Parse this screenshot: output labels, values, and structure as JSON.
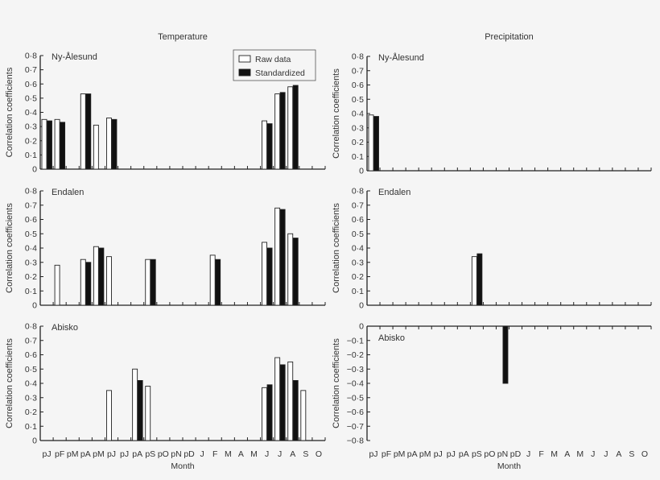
{
  "chart_data": [
    {
      "type": "bar",
      "column_title": "Temperature",
      "site": "Ny-Ålesund",
      "ylabel": "Correlation coefficients",
      "xlabel": "",
      "ylim": [
        0,
        0.8
      ],
      "yticks": [
        "0",
        "0·1",
        "0·2",
        "0·3",
        "0·4",
        "0·5",
        "0·6",
        "0·7",
        "0·8"
      ],
      "categories": [
        "pJ",
        "pF",
        "pM",
        "pA",
        "pM",
        "pJ",
        "pJ",
        "pA",
        "pS",
        "pO",
        "pN",
        "pD",
        "J",
        "F",
        "M",
        "A",
        "M",
        "J",
        "J",
        "A",
        "S",
        "O"
      ],
      "show_xticklabels": false,
      "legend": true,
      "series": [
        {
          "name": "Raw data",
          "color": "#ffffff",
          "values": [
            0.35,
            0.35,
            null,
            0.53,
            0.31,
            0.36,
            null,
            null,
            null,
            null,
            null,
            null,
            null,
            null,
            null,
            null,
            null,
            0.34,
            0.53,
            0.58,
            null,
            null
          ]
        },
        {
          "name": "Standardized",
          "color": "#111111",
          "values": [
            0.34,
            0.33,
            null,
            0.53,
            null,
            0.35,
            null,
            null,
            null,
            null,
            null,
            null,
            null,
            null,
            null,
            null,
            null,
            0.32,
            0.54,
            0.59,
            null,
            null
          ]
        }
      ]
    },
    {
      "type": "bar",
      "column_title": "Precipitation",
      "site": "Ny-Ålesund",
      "ylabel": "Correlation coefficients",
      "xlabel": "",
      "ylim": [
        0,
        0.8
      ],
      "yticks": [
        "0",
        "0·1",
        "0·2",
        "0·3",
        "0·4",
        "0·5",
        "0·6",
        "0·7",
        "0·8"
      ],
      "categories": [
        "pJ",
        "pF",
        "pM",
        "pA",
        "pM",
        "pJ",
        "pJ",
        "pA",
        "pS",
        "pO",
        "pN",
        "pD",
        "J",
        "F",
        "M",
        "A",
        "M",
        "J",
        "J",
        "A",
        "S",
        "O"
      ],
      "show_xticklabels": false,
      "series": [
        {
          "name": "Raw data",
          "color": "#ffffff",
          "values": [
            0.39,
            null,
            null,
            null,
            null,
            null,
            null,
            null,
            null,
            null,
            null,
            null,
            null,
            null,
            null,
            null,
            null,
            null,
            null,
            null,
            null,
            null
          ]
        },
        {
          "name": "Standardized",
          "color": "#111111",
          "values": [
            0.38,
            null,
            null,
            null,
            null,
            null,
            null,
            null,
            null,
            null,
            null,
            null,
            null,
            null,
            null,
            null,
            null,
            null,
            null,
            null,
            null,
            null
          ]
        }
      ]
    },
    {
      "type": "bar",
      "site": "Endalen",
      "ylabel": "Correlation coefficients",
      "xlabel": "",
      "ylim": [
        0,
        0.8
      ],
      "yticks": [
        "0",
        "0·1",
        "0·2",
        "0·3",
        "0·4",
        "0·5",
        "0·6",
        "0·7",
        "0·8"
      ],
      "categories": [
        "pJ",
        "pF",
        "pM",
        "pA",
        "pM",
        "pJ",
        "pJ",
        "pA",
        "pS",
        "pO",
        "pN",
        "pD",
        "J",
        "F",
        "M",
        "A",
        "M",
        "J",
        "J",
        "A",
        "S",
        "O"
      ],
      "show_xticklabels": false,
      "series": [
        {
          "name": "Raw data",
          "color": "#ffffff",
          "values": [
            null,
            0.28,
            null,
            0.32,
            0.41,
            0.34,
            null,
            null,
            0.32,
            null,
            null,
            null,
            null,
            0.35,
            null,
            null,
            null,
            0.44,
            0.68,
            0.5,
            null,
            null
          ]
        },
        {
          "name": "Standardized",
          "color": "#111111",
          "values": [
            null,
            null,
            null,
            0.3,
            0.4,
            null,
            null,
            null,
            0.32,
            null,
            null,
            null,
            null,
            0.32,
            null,
            null,
            null,
            0.4,
            0.67,
            0.47,
            null,
            null
          ]
        }
      ]
    },
    {
      "type": "bar",
      "site": "Endalen",
      "ylabel": "Correlation coefficients",
      "xlabel": "",
      "ylim": [
        0,
        0.8
      ],
      "yticks": [
        "0",
        "0·1",
        "0·2",
        "0·3",
        "0·4",
        "0·5",
        "0·6",
        "0·7",
        "0·8"
      ],
      "categories": [
        "pJ",
        "pF",
        "pM",
        "pA",
        "pM",
        "pJ",
        "pJ",
        "pA",
        "pS",
        "pO",
        "pN",
        "pD",
        "J",
        "F",
        "M",
        "A",
        "M",
        "J",
        "J",
        "A",
        "S",
        "O"
      ],
      "show_xticklabels": false,
      "series": [
        {
          "name": "Raw data",
          "color": "#ffffff",
          "values": [
            null,
            null,
            null,
            null,
            null,
            null,
            null,
            null,
            0.34,
            null,
            null,
            null,
            null,
            null,
            null,
            null,
            null,
            null,
            null,
            null,
            null,
            null
          ]
        },
        {
          "name": "Standardized",
          "color": "#111111",
          "values": [
            null,
            null,
            null,
            null,
            null,
            null,
            null,
            null,
            0.36,
            null,
            null,
            null,
            null,
            null,
            null,
            null,
            null,
            null,
            null,
            null,
            null,
            null
          ]
        }
      ]
    },
    {
      "type": "bar",
      "site": "Abisko",
      "ylabel": "Correlation coefficients",
      "xlabel": "Month",
      "ylim": [
        0,
        0.8
      ],
      "yticks": [
        "0",
        "0·1",
        "0·2",
        "0·3",
        "0·4",
        "0·5",
        "0·6",
        "0·7",
        "0·8"
      ],
      "categories": [
        "pJ",
        "pF",
        "pM",
        "pA",
        "pM",
        "pJ",
        "pJ",
        "pA",
        "pS",
        "pO",
        "pN",
        "pD",
        "J",
        "F",
        "M",
        "A",
        "M",
        "J",
        "J",
        "A",
        "S",
        "O"
      ],
      "show_xticklabels": true,
      "series": [
        {
          "name": "Raw data",
          "color": "#ffffff",
          "values": [
            null,
            null,
            null,
            null,
            null,
            0.35,
            null,
            0.5,
            0.38,
            null,
            null,
            null,
            null,
            null,
            null,
            null,
            null,
            0.37,
            0.58,
            0.55,
            0.35,
            null
          ]
        },
        {
          "name": "Standardized",
          "color": "#111111",
          "values": [
            null,
            null,
            null,
            null,
            null,
            null,
            null,
            0.42,
            null,
            null,
            null,
            null,
            null,
            null,
            null,
            null,
            null,
            0.39,
            0.53,
            0.42,
            null,
            null
          ]
        }
      ]
    },
    {
      "type": "bar",
      "site": "Abisko",
      "ylabel": "Correlation coefficients",
      "xlabel": "Month",
      "ylim": [
        -0.8,
        0
      ],
      "yticks": [
        "−0·8",
        "−0·7",
        "−0·6",
        "−0·5",
        "−0·4",
        "−0·3",
        "−0·2",
        "−0·1",
        "0"
      ],
      "categories": [
        "pJ",
        "pF",
        "pM",
        "pA",
        "pM",
        "pJ",
        "pJ",
        "pA",
        "pS",
        "pO",
        "pN",
        "pD",
        "J",
        "F",
        "M",
        "A",
        "M",
        "J",
        "J",
        "A",
        "S",
        "O"
      ],
      "show_xticklabels": true,
      "series": [
        {
          "name": "Raw data",
          "color": "#ffffff",
          "values": [
            null,
            null,
            null,
            null,
            null,
            null,
            null,
            null,
            null,
            null,
            null,
            null,
            null,
            null,
            null,
            null,
            null,
            null,
            null,
            null,
            null,
            null
          ]
        },
        {
          "name": "Standardized",
          "color": "#111111",
          "values": [
            null,
            null,
            null,
            null,
            null,
            null,
            null,
            null,
            null,
            null,
            -0.4,
            null,
            null,
            null,
            null,
            null,
            null,
            null,
            null,
            null,
            null,
            null
          ]
        }
      ]
    }
  ]
}
